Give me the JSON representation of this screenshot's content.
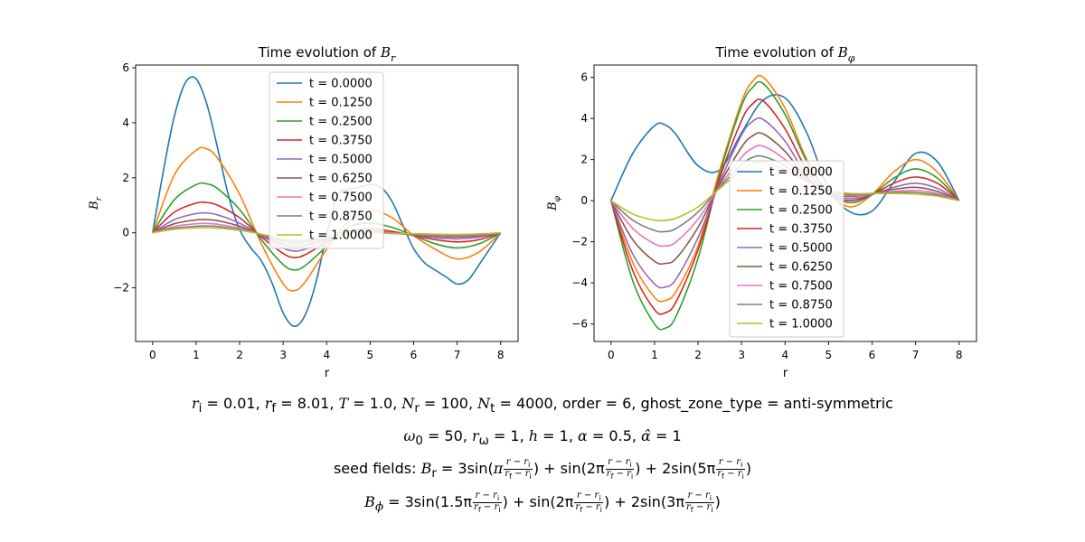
{
  "chart_data": [
    {
      "type": "line",
      "title": "Time evolution of B_r",
      "xlabel": "r",
      "ylabel": "B_r",
      "xlim": [
        -0.39,
        8.4
      ],
      "ylim": [
        -3.95,
        6.1
      ],
      "xticks": [
        0,
        1,
        2,
        3,
        4,
        5,
        6,
        7,
        8
      ],
      "yticks": [
        -2,
        0,
        2,
        4,
        6
      ],
      "legend_position": "upper-center",
      "series": [
        {
          "name": "t = 0.0000",
          "color": "#1f77b4",
          "x": [
            0,
            0.25,
            0.5,
            0.75,
            1,
            1.25,
            1.5,
            1.75,
            2,
            2.25,
            2.5,
            2.75,
            3,
            3.25,
            3.5,
            3.75,
            4,
            4.25,
            4.5,
            4.75,
            5,
            5.25,
            5.5,
            5.75,
            6,
            6.25,
            6.5,
            6.75,
            7,
            7.25,
            7.5,
            7.75,
            8
          ],
          "y": [
            0,
            2.27,
            4.24,
            5.45,
            5.6,
            4.66,
            3.04,
            1.32,
            0.12,
            -0.53,
            -1.02,
            -1.84,
            -2.91,
            -3.4,
            -3.01,
            -1.83,
            -0.06,
            1.37,
            1.57,
            1.66,
            1.75,
            1.65,
            1.15,
            0.28,
            -0.57,
            -1.09,
            -1.36,
            -1.61,
            -1.86,
            -1.72,
            -1.17,
            -0.58,
            0
          ]
        },
        {
          "name": "t = 0.1250",
          "color": "#ff7f0e",
          "x": [
            0,
            0.5,
            1,
            1.25,
            1.5,
            2,
            2.5,
            3,
            3.25,
            3.5,
            4,
            4.5,
            5,
            5.5,
            6,
            6.5,
            7,
            7.5,
            8
          ],
          "y": [
            0,
            2.1,
            3.0,
            3.05,
            2.7,
            1.4,
            -0.4,
            -1.85,
            -2.1,
            -1.8,
            -0.6,
            0.4,
            0.8,
            0.55,
            -0.1,
            -0.6,
            -0.95,
            -0.7,
            0
          ]
        },
        {
          "name": "t = 0.2500",
          "color": "#2ca02c",
          "x": [
            0,
            0.5,
            1,
            1.25,
            1.5,
            2,
            2.5,
            3,
            3.25,
            3.5,
            4,
            4.5,
            5,
            5.5,
            6,
            6.5,
            7,
            7.5,
            8
          ],
          "y": [
            0,
            1.2,
            1.75,
            1.78,
            1.6,
            0.85,
            -0.25,
            -1.15,
            -1.35,
            -1.2,
            -0.5,
            0.2,
            0.35,
            0.2,
            -0.1,
            -0.4,
            -0.55,
            -0.4,
            0
          ]
        },
        {
          "name": "t = 0.3750",
          "color": "#d62728",
          "x": [
            0,
            0.5,
            1,
            1.25,
            1.5,
            2,
            2.5,
            3,
            3.25,
            3.5,
            4,
            4.5,
            5,
            5.5,
            6,
            6.5,
            7,
            7.5,
            8
          ],
          "y": [
            0,
            0.75,
            1.08,
            1.1,
            1.0,
            0.55,
            -0.15,
            -0.75,
            -0.9,
            -0.8,
            -0.35,
            0.05,
            0.15,
            0.05,
            -0.1,
            -0.25,
            -0.33,
            -0.25,
            0
          ]
        },
        {
          "name": "t = 0.5000",
          "color": "#9467bd",
          "x": [
            0,
            0.5,
            1,
            1.25,
            1.5,
            2,
            2.5,
            3,
            3.25,
            3.5,
            4,
            4.5,
            5,
            5.5,
            6,
            6.5,
            7,
            7.5,
            8
          ],
          "y": [
            0,
            0.48,
            0.7,
            0.72,
            0.65,
            0.35,
            -0.1,
            -0.55,
            -0.66,
            -0.6,
            -0.28,
            0.0,
            0.08,
            0.0,
            -0.08,
            -0.18,
            -0.22,
            -0.16,
            0
          ]
        },
        {
          "name": "t = 0.6250",
          "color": "#8c564b",
          "x": [
            0,
            0.5,
            1,
            1.25,
            1.5,
            2,
            2.5,
            3,
            3.25,
            3.5,
            4,
            4.5,
            5,
            5.5,
            6,
            6.5,
            7,
            7.5,
            8
          ],
          "y": [
            0,
            0.33,
            0.47,
            0.48,
            0.44,
            0.24,
            -0.08,
            -0.42,
            -0.5,
            -0.46,
            -0.22,
            -0.02,
            0.04,
            -0.02,
            -0.06,
            -0.12,
            -0.15,
            -0.11,
            0
          ]
        },
        {
          "name": "t = 0.7500",
          "color": "#e377c2",
          "x": [
            0,
            0.5,
            1,
            1.25,
            1.5,
            2,
            2.5,
            3,
            3.25,
            3.5,
            4,
            4.5,
            5,
            5.5,
            6,
            6.5,
            7,
            7.5,
            8
          ],
          "y": [
            0,
            0.23,
            0.33,
            0.34,
            0.31,
            0.17,
            -0.07,
            -0.33,
            -0.4,
            -0.37,
            -0.18,
            -0.03,
            0.02,
            -0.02,
            -0.05,
            -0.09,
            -0.11,
            -0.08,
            0
          ]
        },
        {
          "name": "t = 0.8750",
          "color": "#7f7f7f",
          "x": [
            0,
            0.5,
            1,
            1.25,
            1.5,
            2,
            2.5,
            3,
            3.25,
            3.5,
            4,
            4.5,
            5,
            5.5,
            6,
            6.5,
            7,
            7.5,
            8
          ],
          "y": [
            0,
            0.17,
            0.24,
            0.25,
            0.23,
            0.12,
            -0.06,
            -0.27,
            -0.33,
            -0.31,
            -0.15,
            -0.03,
            0.01,
            -0.02,
            -0.04,
            -0.07,
            -0.08,
            -0.06,
            0
          ]
        },
        {
          "name": "t = 1.0000",
          "color": "#bcbd22",
          "x": [
            0,
            0.5,
            1,
            1.25,
            1.5,
            2,
            2.5,
            3,
            3.25,
            3.5,
            4,
            4.5,
            5,
            5.5,
            6,
            6.5,
            7,
            7.5,
            8
          ],
          "y": [
            0,
            0.13,
            0.18,
            0.19,
            0.17,
            0.09,
            -0.05,
            -0.22,
            -0.28,
            -0.26,
            -0.13,
            -0.03,
            0.0,
            -0.02,
            -0.03,
            -0.05,
            -0.06,
            -0.04,
            0
          ]
        }
      ]
    },
    {
      "type": "line",
      "title": "Time evolution of B_φ",
      "xlabel": "r",
      "ylabel": "B_φ",
      "xlim": [
        -0.39,
        8.4
      ],
      "ylim": [
        -6.85,
        6.6
      ],
      "xticks": [
        0,
        1,
        2,
        3,
        4,
        5,
        6,
        7,
        8
      ],
      "yticks": [
        -6,
        -4,
        -2,
        0,
        2,
        4,
        6
      ],
      "legend_position": "center",
      "series": [
        {
          "name": "t = 0.0000",
          "color": "#1f77b4",
          "x": [
            0,
            0.5,
            1,
            1.25,
            1.5,
            2,
            2.5,
            3,
            3.5,
            4,
            4.5,
            5,
            5.5,
            6,
            6.5,
            7,
            7.5,
            8
          ],
          "y": [
            0,
            2.3,
            3.65,
            3.68,
            3.2,
            1.7,
            1.5,
            3.3,
            4.9,
            5.0,
            3.3,
            0.6,
            -0.55,
            -0.5,
            0.9,
            2.3,
            1.9,
            0
          ]
        },
        {
          "name": "t = 0.1250",
          "color": "#ff7f0e",
          "x": [
            0,
            0.5,
            1,
            1.25,
            1.5,
            2,
            2.5,
            3,
            3.25,
            3.5,
            4,
            4.5,
            5,
            5.5,
            6,
            6.5,
            7,
            7.5,
            8
          ],
          "y": [
            0,
            -3.0,
            -4.7,
            -4.85,
            -4.4,
            -2.2,
            1.5,
            4.8,
            5.8,
            6.0,
            4.5,
            2.0,
            0.4,
            -0.3,
            0.3,
            1.4,
            2.0,
            1.4,
            0
          ]
        },
        {
          "name": "t = 0.2500",
          "color": "#2ca02c",
          "x": [
            0,
            0.5,
            1,
            1.25,
            1.5,
            2,
            2.5,
            3,
            3.25,
            3.5,
            4,
            4.5,
            5,
            5.5,
            6,
            6.5,
            7,
            7.5,
            8
          ],
          "y": [
            0,
            -3.9,
            -6.0,
            -6.2,
            -5.6,
            -2.8,
            1.3,
            4.6,
            5.5,
            5.7,
            4.2,
            1.9,
            0.4,
            -0.1,
            0.3,
            1.1,
            1.55,
            1.1,
            0
          ]
        },
        {
          "name": "t = 0.3750",
          "color": "#d62728",
          "x": [
            0,
            0.5,
            1,
            1.25,
            1.5,
            2,
            2.5,
            3,
            3.25,
            3.5,
            4,
            4.5,
            5,
            5.5,
            6,
            6.5,
            7,
            7.5,
            8
          ],
          "y": [
            0,
            -3.4,
            -5.3,
            -5.45,
            -4.9,
            -2.4,
            1.1,
            3.9,
            4.7,
            4.85,
            3.5,
            1.5,
            0.3,
            0.0,
            0.3,
            0.85,
            1.15,
            0.85,
            0
          ]
        },
        {
          "name": "t = 0.5000",
          "color": "#9467bd",
          "x": [
            0,
            0.5,
            1,
            1.25,
            1.5,
            2,
            2.5,
            3,
            3.25,
            3.5,
            4,
            4.5,
            5,
            5.5,
            6,
            6.5,
            7,
            7.5,
            8
          ],
          "y": [
            0,
            -2.6,
            -4.05,
            -4.2,
            -3.8,
            -1.8,
            0.9,
            3.2,
            3.85,
            3.95,
            2.9,
            1.2,
            0.3,
            0.1,
            0.3,
            0.65,
            0.85,
            0.6,
            0
          ]
        },
        {
          "name": "t = 0.6250",
          "color": "#8c564b",
          "x": [
            0,
            0.5,
            1,
            1.25,
            1.5,
            2,
            2.5,
            3,
            3.25,
            3.5,
            4,
            4.5,
            5,
            5.5,
            6,
            6.5,
            7,
            7.5,
            8
          ],
          "y": [
            0,
            -1.9,
            -2.95,
            -3.05,
            -2.8,
            -1.3,
            0.8,
            2.6,
            3.15,
            3.25,
            2.4,
            1.1,
            0.35,
            0.2,
            0.35,
            0.55,
            0.65,
            0.45,
            0
          ]
        },
        {
          "name": "t = 0.7500",
          "color": "#e377c2",
          "x": [
            0,
            0.5,
            1,
            1.25,
            1.5,
            2,
            2.5,
            3,
            3.25,
            3.5,
            4,
            4.5,
            5,
            5.5,
            6,
            6.5,
            7,
            7.5,
            8
          ],
          "y": [
            0,
            -1.35,
            -2.1,
            -2.2,
            -2.0,
            -0.9,
            0.7,
            2.1,
            2.55,
            2.65,
            2.0,
            1.0,
            0.4,
            0.25,
            0.35,
            0.45,
            0.5,
            0.35,
            0
          ]
        },
        {
          "name": "t = 0.8750",
          "color": "#7f7f7f",
          "x": [
            0,
            0.5,
            1,
            1.25,
            1.5,
            2,
            2.5,
            3,
            3.25,
            3.5,
            4,
            4.5,
            5,
            5.5,
            6,
            6.5,
            7,
            7.5,
            8
          ],
          "y": [
            0,
            -0.95,
            -1.45,
            -1.5,
            -1.35,
            -0.55,
            0.65,
            1.75,
            2.1,
            2.15,
            1.7,
            0.95,
            0.45,
            0.3,
            0.35,
            0.4,
            0.4,
            0.28,
            0
          ]
        },
        {
          "name": "t = 1.0000",
          "color": "#bcbd22",
          "x": [
            0,
            0.5,
            1,
            1.25,
            1.5,
            2,
            2.5,
            3,
            3.25,
            3.5,
            4,
            4.5,
            5,
            5.5,
            6,
            6.5,
            7,
            7.5,
            8
          ],
          "y": [
            0,
            -0.65,
            -0.95,
            -0.95,
            -0.85,
            -0.3,
            0.6,
            1.5,
            1.8,
            1.85,
            1.5,
            0.9,
            0.5,
            0.35,
            0.35,
            0.35,
            0.32,
            0.22,
            0
          ]
        }
      ]
    }
  ],
  "caption": {
    "line1": {
      "ri": "0.01",
      "rf": "8.01",
      "T": "1.0",
      "Nr": "100",
      "Nt": "4000",
      "order": "order = 6",
      "ghost": "ghost_zone_type = anti-symmetric"
    },
    "line2": {
      "omega0": "50",
      "romega": "1",
      "h": "1",
      "alpha": "0.5",
      "alphahat": "1"
    },
    "line3": {
      "prefix": "seed fields:",
      "c1": "3",
      "c2": "sin(2π",
      "c3": "2sin(5π"
    },
    "line4": {
      "c1": "3sin(1.5π",
      "c2": "sin(2π",
      "c3": "2sin(3π"
    }
  }
}
